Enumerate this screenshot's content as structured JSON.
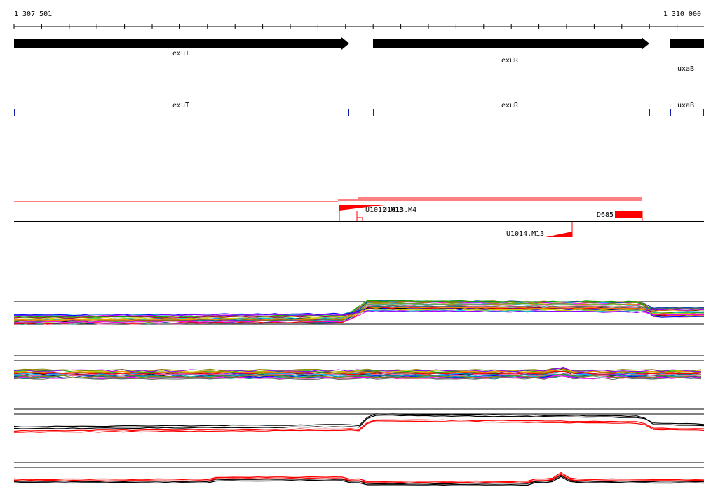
{
  "ruler": {
    "start_label": "1 307 501",
    "end_label": "1 310 000"
  },
  "genes": [
    {
      "name": "exuT",
      "color": "#000000"
    },
    {
      "name": "exuR",
      "color": "#000000"
    },
    {
      "name": "uxaB",
      "color": "#000000"
    }
  ],
  "cds": [
    {
      "name": "exuT",
      "color": "#1b1baa"
    },
    {
      "name": "exuR",
      "color": "#1b1baa"
    },
    {
      "name": "uxaB",
      "color": "#1b1baa"
    }
  ],
  "features": [
    {
      "name": "U1012.M13",
      "color": "#ff0000"
    },
    {
      "name": "U1013.M4",
      "color": "#ff0000"
    },
    {
      "name": "U1014.M13",
      "color": "#ff0000"
    },
    {
      "name": "D685",
      "color": "#ff0000"
    }
  ],
  "colors": {
    "accent": "#ff0000",
    "line": "#000000",
    "cds_outline": "#1b1baa"
  }
}
